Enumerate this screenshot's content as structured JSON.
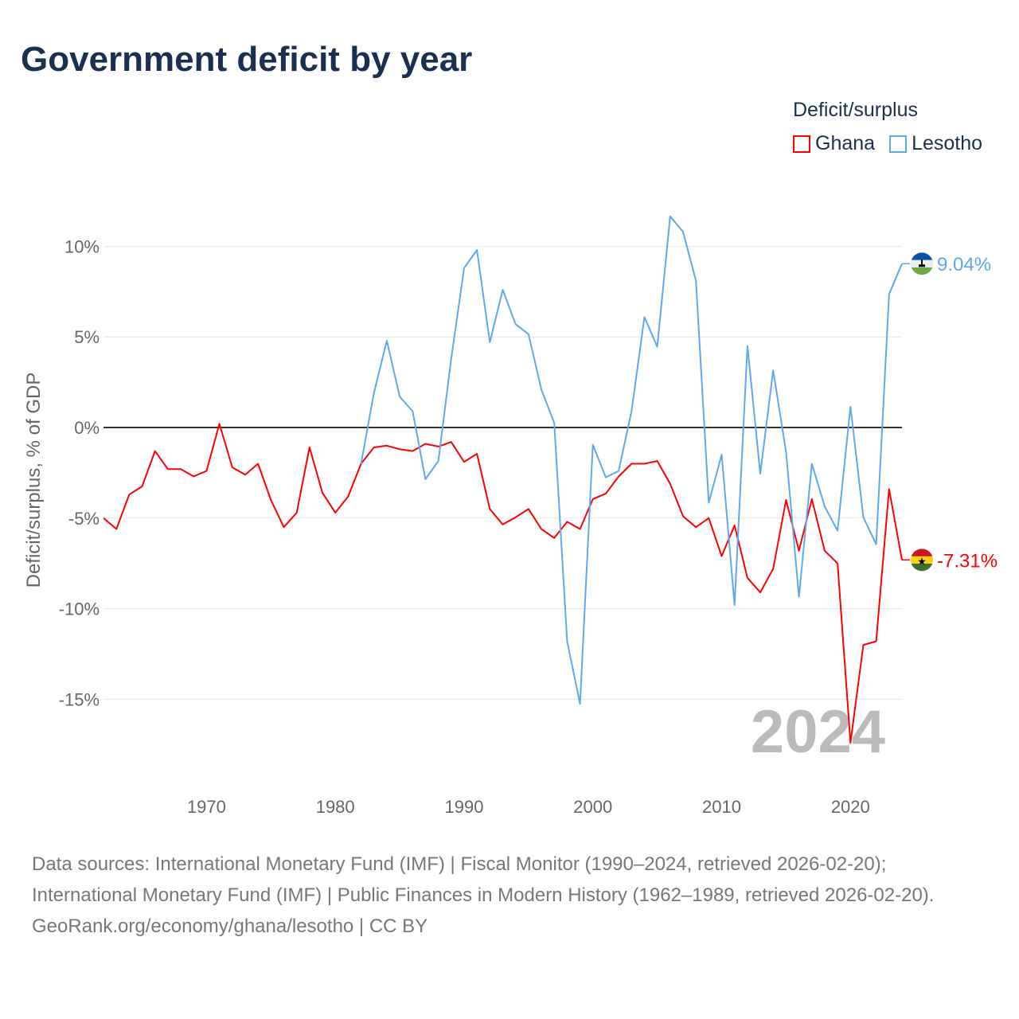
{
  "title": "Government deficit by year",
  "legend": {
    "title": "Deficit/surplus",
    "items": [
      {
        "label": "Ghana",
        "color": "#ff0000"
      },
      {
        "label": "Lesotho",
        "color": "#5fa8ee"
      }
    ]
  },
  "year_watermark": "2024",
  "footer": {
    "sources": "Data sources: International Monetary Fund (IMF) | Fiscal Monitor (1990–2024, retrieved 2026-02-20); International Monetary Fund (IMF) | Public Finances in Modern History (1962–1989, retrieved 2026-02-20).",
    "credit": "GeoRank.org/economy/ghana/lesotho | CC BY"
  },
  "chart_data": {
    "type": "line",
    "title": "Government deficit by year",
    "xlabel": "",
    "ylabel": "Deficit/surplus, % of GDP",
    "xlim": [
      1962,
      2024
    ],
    "ylim": [
      -19,
      12.5
    ],
    "x_ticks": [
      1970,
      1980,
      1990,
      2000,
      2010,
      2020
    ],
    "y_ticks": [
      {
        "v": 10,
        "label": "10%"
      },
      {
        "v": 5,
        "label": "5%"
      },
      {
        "v": 0,
        "label": "0%"
      },
      {
        "v": -5,
        "label": "-5%"
      },
      {
        "v": -10,
        "label": "-10%"
      },
      {
        "v": -15,
        "label": "-15%"
      }
    ],
    "grid": true,
    "legend_position": "top-right",
    "series": [
      {
        "name": "Ghana",
        "color": "#ff0000",
        "start_year": 1962,
        "end_label": "-7.31%",
        "values": [
          -5.0,
          -5.6,
          -3.7,
          -3.25,
          -1.3,
          -2.3,
          -2.3,
          -2.7,
          -2.4,
          0.2,
          -2.2,
          -2.6,
          -2.0,
          -4.0,
          -5.5,
          -4.7,
          -1.1,
          -3.6,
          -4.7,
          -3.8,
          -2.0,
          -1.1,
          -1.0,
          -1.2,
          -1.3,
          -0.9,
          -1.05,
          -0.8,
          -1.9,
          -1.45,
          -4.5,
          -5.35,
          -4.95,
          -4.5,
          -5.6,
          -6.1,
          -5.2,
          -5.6,
          -3.95,
          -3.65,
          -2.7,
          -2.0,
          -2.0,
          -1.85,
          -3.1,
          -4.9,
          -5.5,
          -5.0,
          -7.1,
          -5.4,
          -8.3,
          -9.1,
          -7.8,
          -4.0,
          -6.8,
          -3.95,
          -6.8,
          -7.5,
          -17.4,
          -12.0,
          -11.8,
          -3.4,
          -7.31
        ]
      },
      {
        "name": "Lesotho",
        "color": "#5fa8ee",
        "start_year": 1982,
        "end_label": "9.04%",
        "values": [
          -2.0,
          1.9,
          4.8,
          1.7,
          0.9,
          -2.85,
          -1.85,
          3.8,
          8.8,
          9.8,
          4.7,
          7.6,
          5.7,
          5.15,
          2.1,
          0.25,
          -11.8,
          -15.25,
          -0.95,
          -2.75,
          -2.4,
          0.9,
          6.1,
          4.45,
          11.65,
          10.8,
          8.1,
          -4.15,
          -1.5,
          -9.8,
          4.5,
          -2.55,
          3.15,
          -1.35,
          -9.35,
          -2.0,
          -4.35,
          -5.7,
          1.15,
          -4.95,
          -6.45,
          7.35,
          9.04
        ]
      }
    ]
  }
}
